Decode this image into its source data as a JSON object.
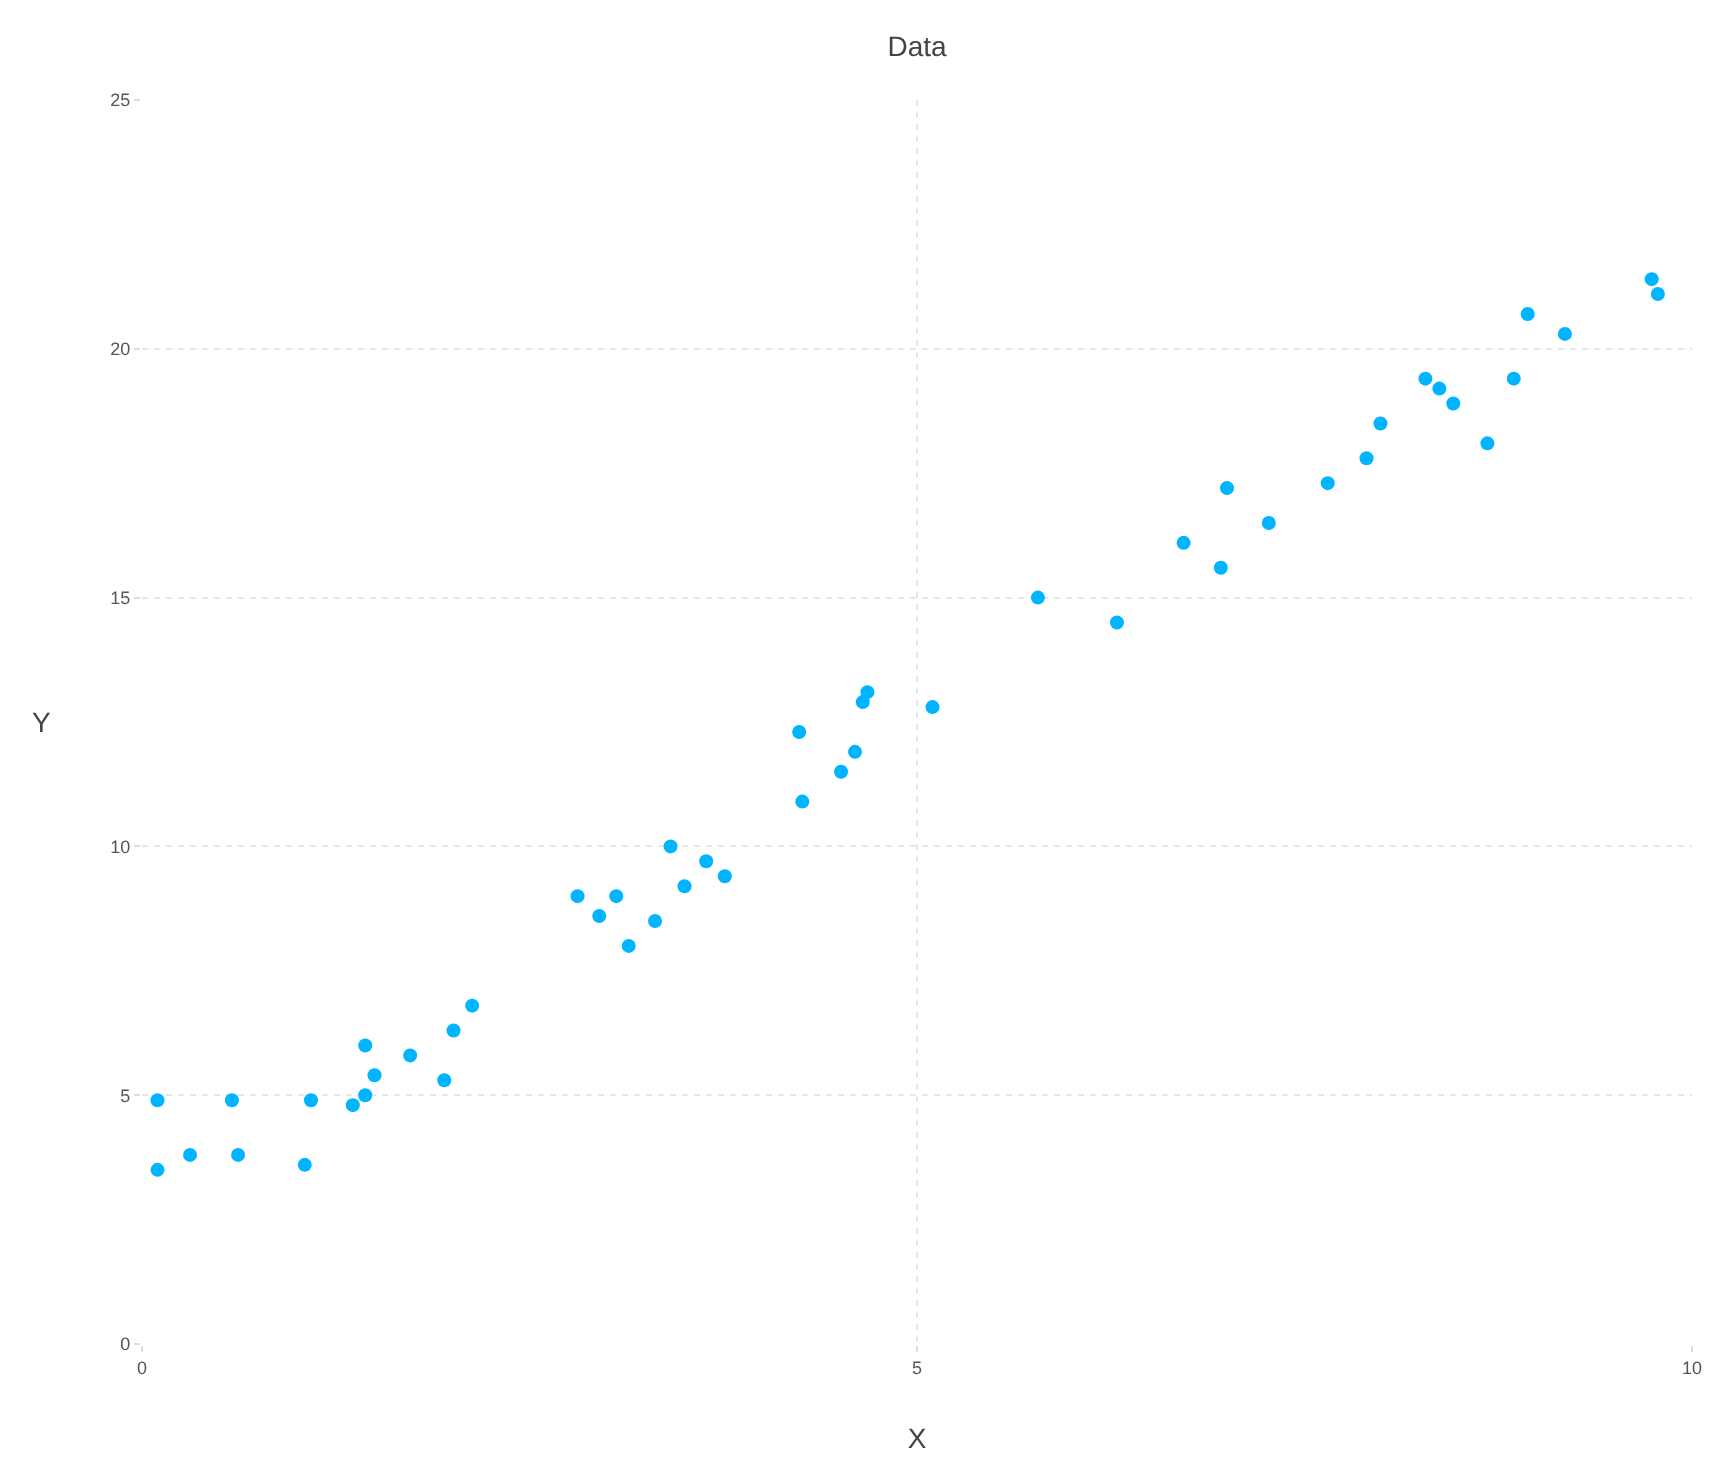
{
  "chart_data": {
    "type": "scatter",
    "title": "Data",
    "xlabel": "X",
    "ylabel": "Y",
    "x": [
      0.1,
      0.1,
      0.31,
      0.58,
      0.62,
      1.05,
      1.09,
      1.36,
      1.44,
      1.44,
      1.5,
      1.73,
      1.95,
      2.01,
      2.13,
      2.81,
      2.95,
      3.06,
      3.14,
      3.31,
      3.41,
      3.5,
      3.64,
      3.76,
      4.24,
      4.26,
      4.51,
      4.6,
      4.65,
      4.68,
      5.1,
      5.78,
      6.29,
      6.72,
      6.96,
      7.0,
      7.27,
      7.65,
      7.9,
      7.99,
      8.28,
      8.37,
      8.46,
      8.68,
      8.85,
      8.94,
      9.18,
      9.74,
      9.78
    ],
    "series": [
      {
        "color": "#00b4ff",
        "values": [
          4.9,
          3.5,
          3.8,
          4.9,
          3.8,
          3.6,
          4.9,
          4.8,
          5.0,
          6.0,
          5.4,
          5.8,
          5.3,
          6.3,
          6.8,
          9.0,
          8.6,
          9.0,
          8.0,
          8.5,
          10.0,
          9.2,
          9.7,
          9.4,
          12.3,
          10.9,
          11.5,
          11.9,
          12.9,
          13.1,
          12.8,
          15.0,
          14.5,
          16.1,
          15.6,
          17.2,
          16.5,
          17.3,
          17.8,
          18.5,
          19.4,
          19.2,
          18.9,
          18.1,
          19.4,
          20.7,
          20.3,
          21.4,
          21.1
        ]
      }
    ],
    "xlim": [
      0,
      10
    ],
    "ylim": [
      0,
      25
    ],
    "xticks": [
      0,
      5,
      10
    ],
    "yticks": [
      0,
      5,
      10,
      15,
      20,
      25
    ],
    "grid": true,
    "marker": "circle"
  }
}
